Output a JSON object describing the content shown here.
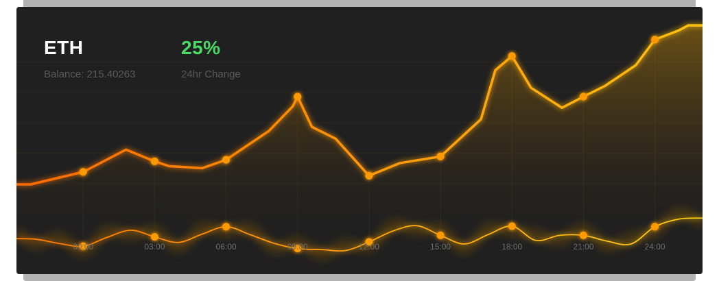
{
  "colors": {
    "background": "#202020",
    "frame": "#b3b3b3",
    "asset_value": "#ffffff",
    "change_value": "#4cd964",
    "label": "#5a5a5a",
    "line_primary_start": "#ff6a00",
    "line_primary_end": "#ffc20e",
    "marker": "#ff9a00",
    "tick_label": "#6e6e6e",
    "grid": "#3a2f1a"
  },
  "header": {
    "asset": "ETH",
    "balance_label": "Balance: 215.40263",
    "change_value": "25%",
    "change_label": "24hr Change"
  },
  "chart_data": {
    "type": "line",
    "categories": [
      "00:00",
      "03:00",
      "06:00",
      "09:00",
      "12:00",
      "15:00",
      "18:00",
      "21:00",
      "24:00"
    ],
    "series": [
      {
        "role": "price",
        "x": [
          -2.8,
          -2.2,
          0,
          1.8,
          3,
          3.6,
          5,
          6,
          7.8,
          8.8,
          9,
          9.6,
          10.6,
          12,
          13.3,
          15,
          16.7,
          17.3,
          18,
          18.8,
          20.1,
          21,
          21.9,
          23.2,
          24,
          25,
          25.4,
          26
        ],
        "y": [
          32.7,
          32.7,
          37.6,
          46.4,
          41.8,
          39.9,
          39.1,
          42.4,
          53.8,
          63.5,
          67.3,
          55.4,
          50.7,
          36.1,
          41.1,
          43.7,
          58.4,
          77.7,
          83.3,
          70.8,
          62.9,
          67.3,
          71.5,
          79.7,
          89.8,
          93.4,
          95.4,
          95.4
        ],
        "markers_at": [
          "00:00",
          "03:00",
          "06:00",
          "09:00",
          "12:00",
          "15:00",
          "18:00",
          "21:00",
          "24:00"
        ]
      },
      {
        "role": "volume",
        "x": [
          -2.8,
          -2,
          -1,
          0,
          1,
          2,
          3,
          4,
          5,
          6,
          7,
          8,
          9,
          10,
          11,
          12,
          13,
          14,
          15,
          16,
          17,
          18,
          19,
          20,
          21,
          22,
          23,
          24,
          25,
          26
        ],
        "y": [
          11.3,
          11.1,
          9.4,
          8.3,
          11.8,
          14.6,
          12.0,
          9.8,
          13.1,
          16.0,
          12.9,
          9.5,
          7.4,
          7.0,
          6.6,
          10.0,
          14.3,
          16.4,
          12.6,
          9.2,
          12.9,
          16.2,
          10.6,
          12.6,
          12.6,
          10.3,
          9.2,
          16.0,
          19.0,
          19.4
        ],
        "markers_at": [
          "00:00",
          "03:00",
          "06:00",
          "09:00",
          "12:00",
          "15:00",
          "18:00",
          "21:00",
          "24:00"
        ]
      }
    ],
    "xlim": [
      -2.8,
      26
    ],
    "ylim": [
      0,
      100
    ],
    "grid": true,
    "legend": "none"
  }
}
